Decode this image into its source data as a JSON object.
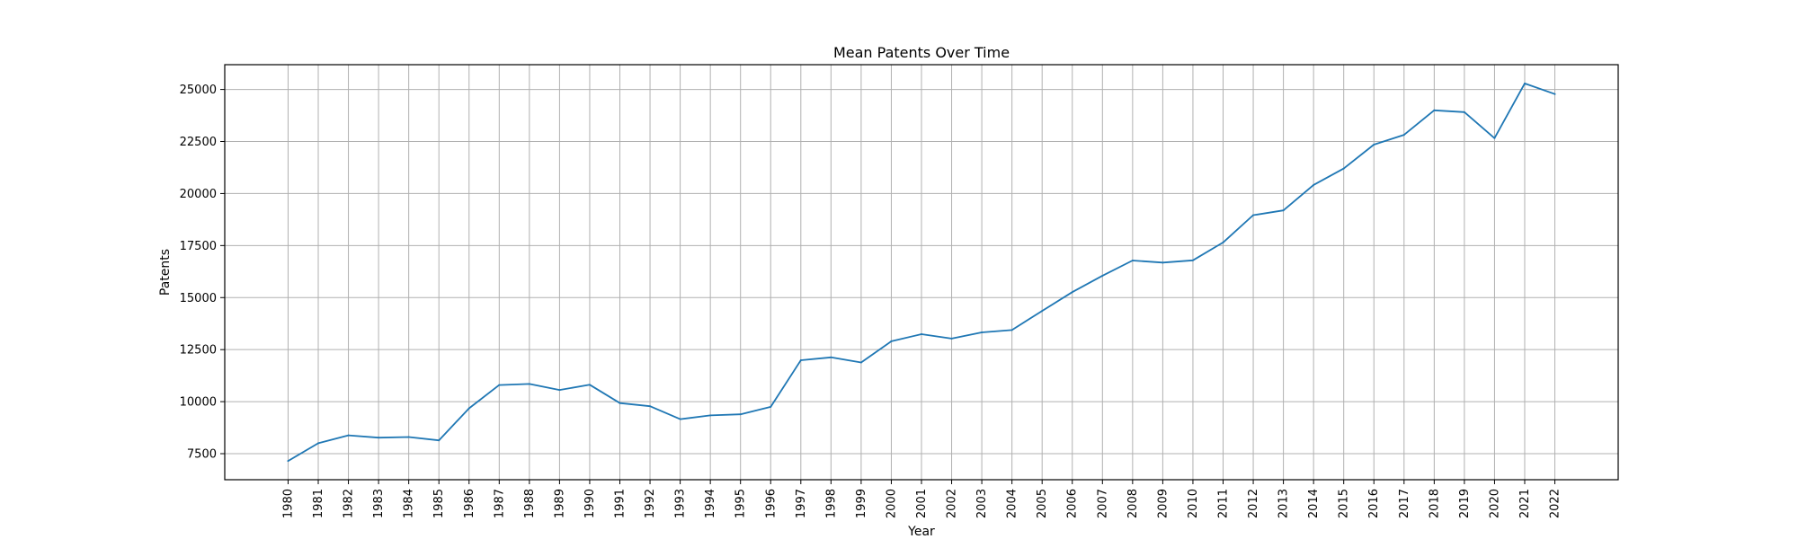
{
  "chart_data": {
    "type": "line",
    "title": "Mean Patents Over Time",
    "xlabel": "Year",
    "ylabel": "Patents",
    "x": [
      1980,
      1981,
      1982,
      1983,
      1984,
      1985,
      1986,
      1987,
      1988,
      1989,
      1990,
      1991,
      1992,
      1993,
      1994,
      1995,
      1996,
      1997,
      1998,
      1999,
      2000,
      2001,
      2002,
      2003,
      2004,
      2005,
      2006,
      2007,
      2008,
      2009,
      2010,
      2011,
      2012,
      2013,
      2014,
      2015,
      2016,
      2017,
      2018,
      2019,
      2020,
      2021,
      2022
    ],
    "series": [
      {
        "values": [
          7150,
          8000,
          8380,
          8270,
          8300,
          8140,
          9680,
          10800,
          10850,
          10560,
          10810,
          9930,
          9780,
          9160,
          9340,
          9390,
          9750,
          11990,
          12130,
          11880,
          12900,
          13240,
          13030,
          13330,
          13440,
          14360,
          15260,
          16050,
          16780,
          16680,
          16790,
          17650,
          18960,
          19190,
          20410,
          21200,
          22350,
          22820,
          24000,
          23910,
          22660,
          25290,
          24780
        ],
        "color": "#1f77b4"
      }
    ],
    "xticks": [
      "1980",
      "1981",
      "1982",
      "1983",
      "1984",
      "1985",
      "1986",
      "1987",
      "1988",
      "1989",
      "1990",
      "1991",
      "1992",
      "1993",
      "1994",
      "1995",
      "1996",
      "1997",
      "1998",
      "1999",
      "2000",
      "2001",
      "2002",
      "2003",
      "2004",
      "2005",
      "2006",
      "2007",
      "2008",
      "2009",
      "2010",
      "2011",
      "2012",
      "2013",
      "2014",
      "2015",
      "2016",
      "2017",
      "2018",
      "2019",
      "2020",
      "2021",
      "2022"
    ],
    "yticks": [
      7500,
      10000,
      12500,
      15000,
      17500,
      20000,
      22500,
      25000
    ],
    "ytick_labels": [
      "7500",
      "10000",
      "12500",
      "15000",
      "17500",
      "20000",
      "22500",
      "25000"
    ],
    "xlim": [
      1977.9,
      2024.1
    ],
    "ylim": [
      6249,
      26191
    ],
    "grid": true
  }
}
